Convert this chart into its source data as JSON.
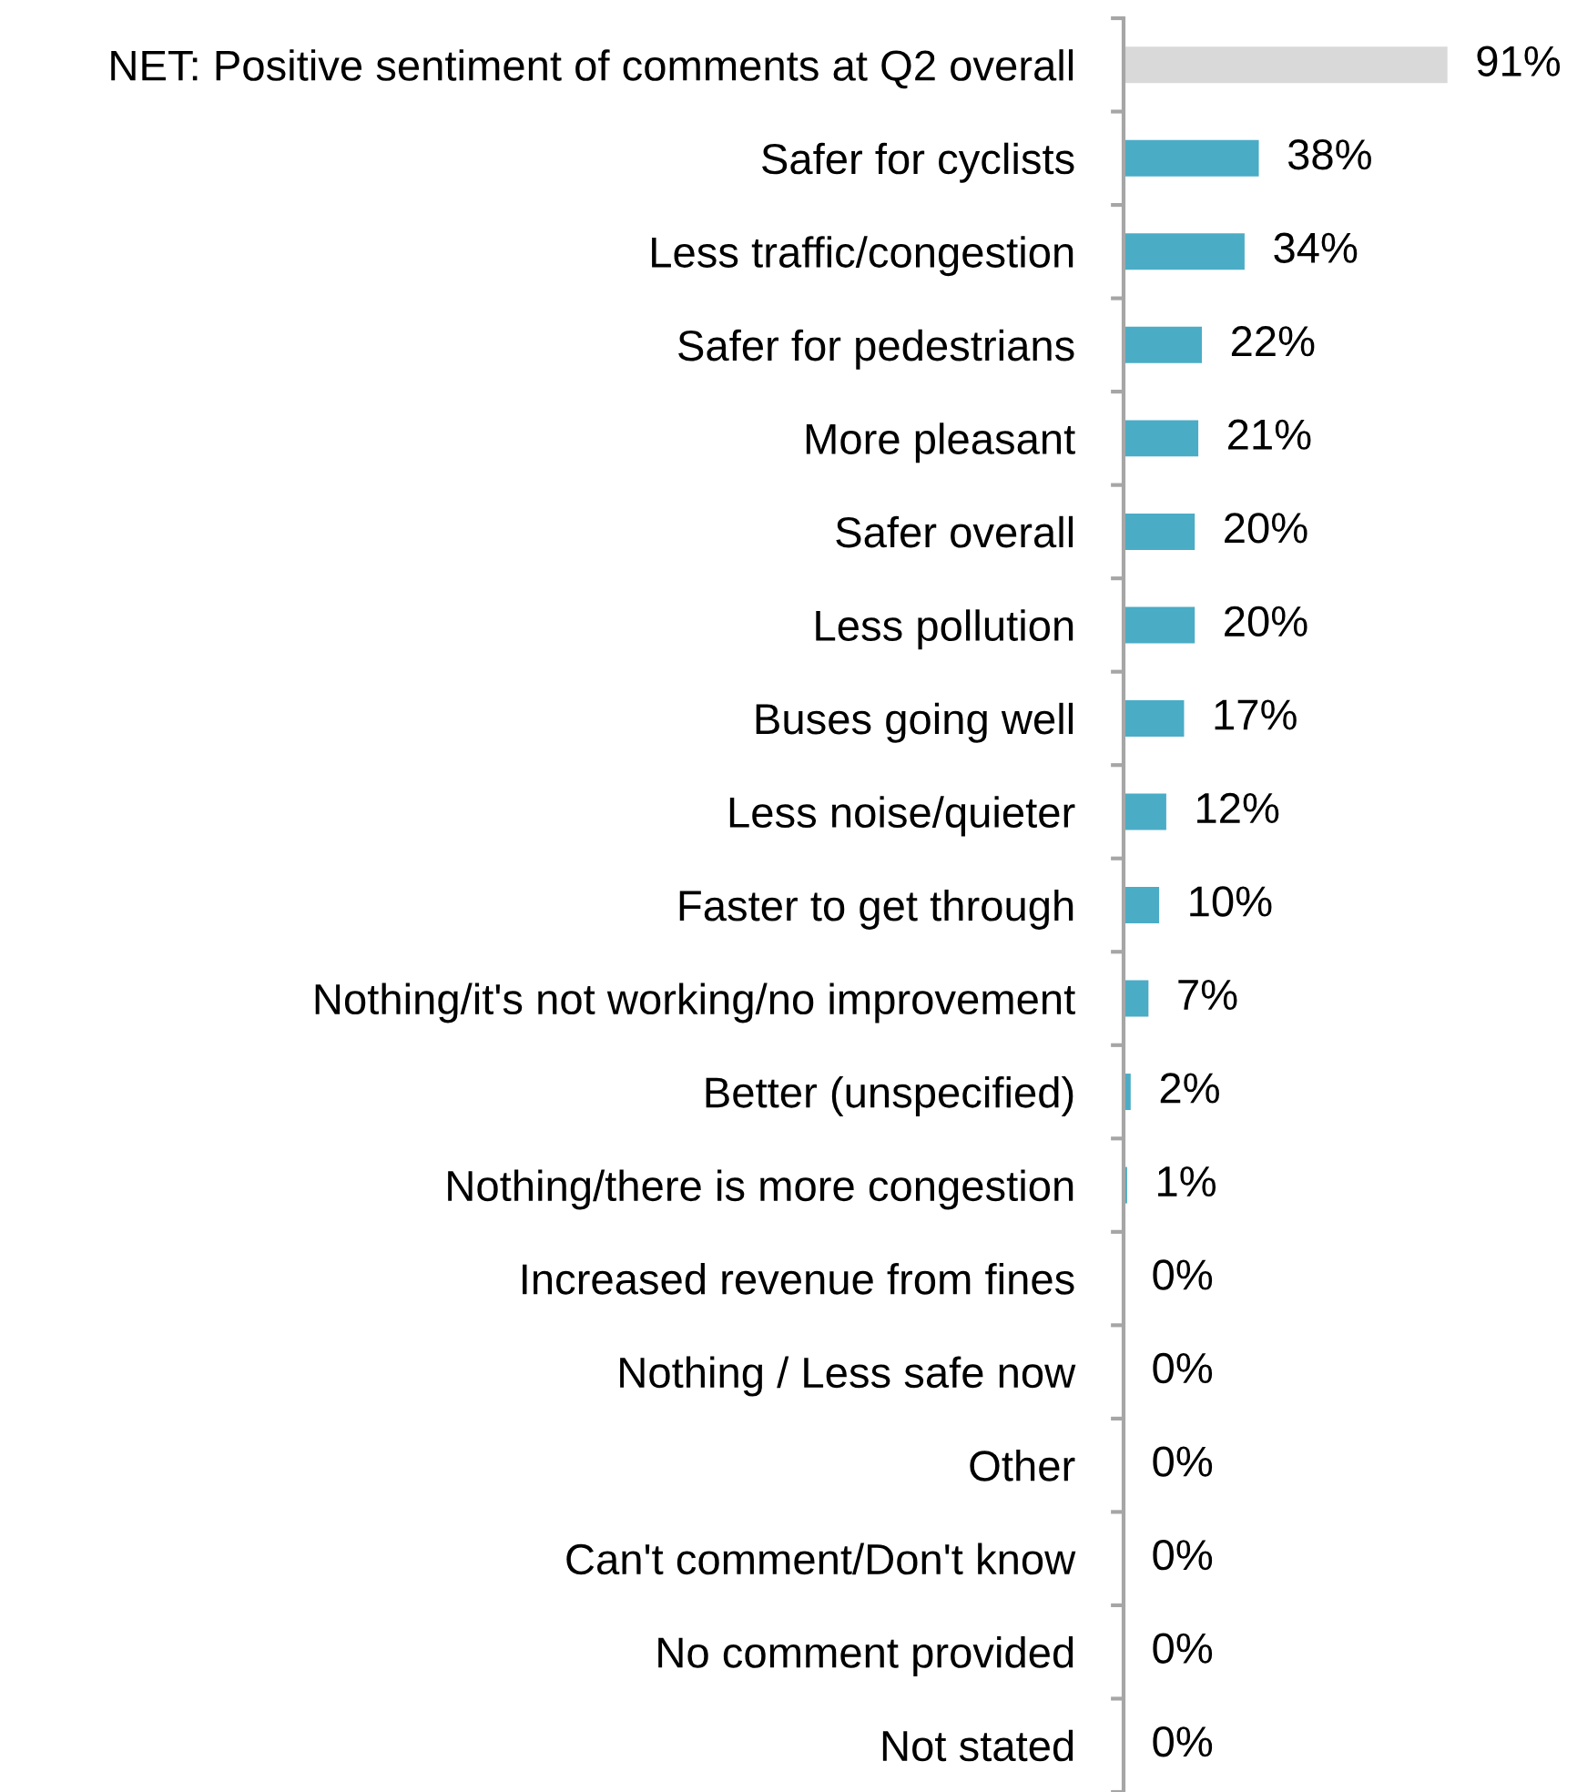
{
  "chart_data": {
    "type": "bar",
    "orientation": "horizontal",
    "categories": [
      "NET: Positive sentiment of comments at Q2 overall",
      "Safer for cyclists",
      "Less traffic/congestion",
      "Safer for pedestrians",
      "More pleasant",
      "Safer overall",
      "Less pollution",
      "Buses going well",
      "Less noise/quieter",
      "Faster to get through",
      "Nothing/it's not working/no improvement",
      "Better (unspecified)",
      "Nothing/there is more congestion",
      "Increased revenue from fines",
      "Nothing / Less safe now",
      "Other",
      "Can't comment/Don't know",
      "No comment provided",
      "Not stated"
    ],
    "values": [
      91,
      38,
      34,
      22,
      21,
      20,
      20,
      17,
      12,
      10,
      7,
      2,
      1,
      0,
      0,
      0,
      0,
      0,
      0
    ],
    "colors": [
      "#d9d9d9",
      "#4bacc6",
      "#4bacc6",
      "#4bacc6",
      "#4bacc6",
      "#4bacc6",
      "#4bacc6",
      "#4bacc6",
      "#4bacc6",
      "#4bacc6",
      "#4bacc6",
      "#4bacc6",
      "#4bacc6",
      "#4bacc6",
      "#4bacc6",
      "#4bacc6",
      "#4bacc6",
      "#4bacc6",
      "#4bacc6"
    ],
    "value_labels": [
      "91%",
      "38%",
      "34%",
      "22%",
      "21%",
      "20%",
      "20%",
      "17%",
      "12%",
      "10%",
      "7%",
      "2%",
      "1%",
      "0%",
      "0%",
      "0%",
      "0%",
      "0%",
      "0%"
    ]
  }
}
